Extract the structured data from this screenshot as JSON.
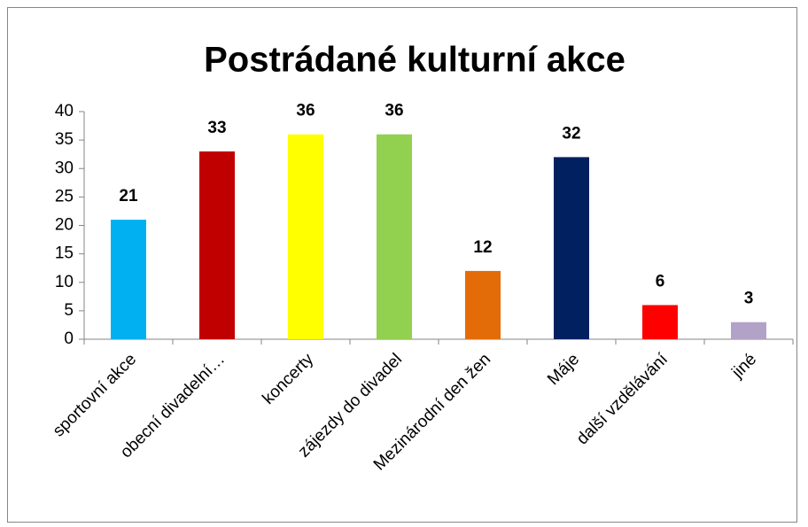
{
  "chart_data": {
    "type": "bar",
    "title": "Postrádané kulturní akce",
    "categories": [
      "sportovní akce",
      "obecní divadelní…",
      "koncerty",
      "zájezdy do divadel",
      "Mezinárodní den žen",
      "Máje",
      "další vzdělávání",
      "jiné"
    ],
    "values": [
      21,
      33,
      36,
      36,
      12,
      32,
      6,
      3
    ],
    "colors": [
      "#00b0f0",
      "#c00000",
      "#ffff00",
      "#92d050",
      "#e36c09",
      "#002060",
      "#ff0000",
      "#b3a2c7"
    ],
    "ylim": [
      0,
      40
    ],
    "yticks": [
      0,
      5,
      10,
      15,
      20,
      25,
      30,
      35,
      40
    ],
    "grid": false
  }
}
